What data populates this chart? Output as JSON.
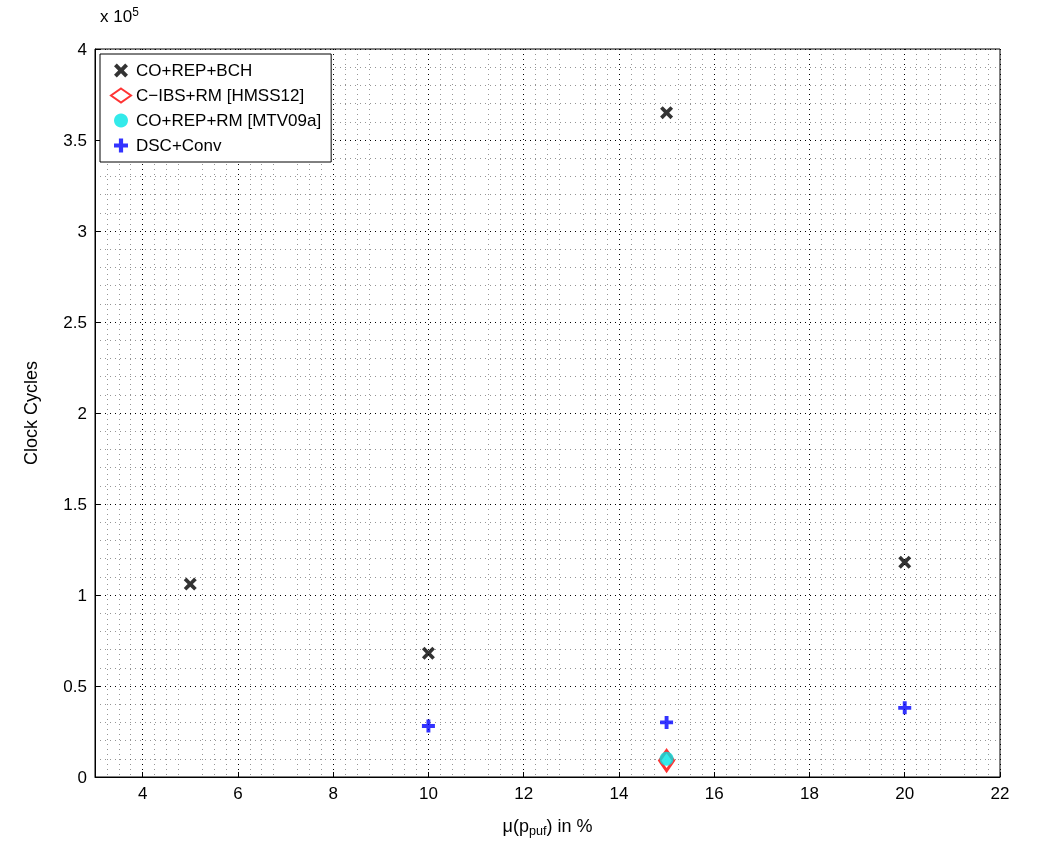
{
  "chart_data": {
    "type": "scatter",
    "xlabel": "μ(p$_{puf}$) in %",
    "ylabel": "Clock Cycles",
    "annotations": [
      "x 10$^{5}$"
    ],
    "xlim": [
      3,
      22
    ],
    "xticks": [
      4,
      6,
      8,
      10,
      12,
      14,
      16,
      18,
      20,
      22
    ],
    "ylim": [
      0,
      4
    ],
    "yticks": [
      0,
      0.5,
      1,
      1.5,
      2,
      2.5,
      3,
      3.5,
      4
    ],
    "grid": true,
    "legend": "top left",
    "series": [
      {
        "name": "CO+REP+BCH",
        "color": "#000000",
        "marker": "cross",
        "x": [
          5,
          10,
          15,
          20
        ],
        "values": [
          1.06,
          0.68,
          3.65,
          1.18
        ]
      },
      {
        "name": "C−IBS+RM [HMSS12]",
        "color": "#ff0000",
        "marker": "diamond",
        "x": [
          15
        ],
        "values": [
          0.09
        ]
      },
      {
        "name": "CO+REP+RM [MTV09a]",
        "color": "#00e5e5",
        "marker": "circle",
        "x": [
          15
        ],
        "values": [
          0.1
        ]
      },
      {
        "name": "DSC+Conv",
        "color": "#0000ff",
        "marker": "plus",
        "x": [
          10,
          15,
          20
        ],
        "values": [
          0.28,
          0.3,
          0.38
        ]
      }
    ]
  }
}
